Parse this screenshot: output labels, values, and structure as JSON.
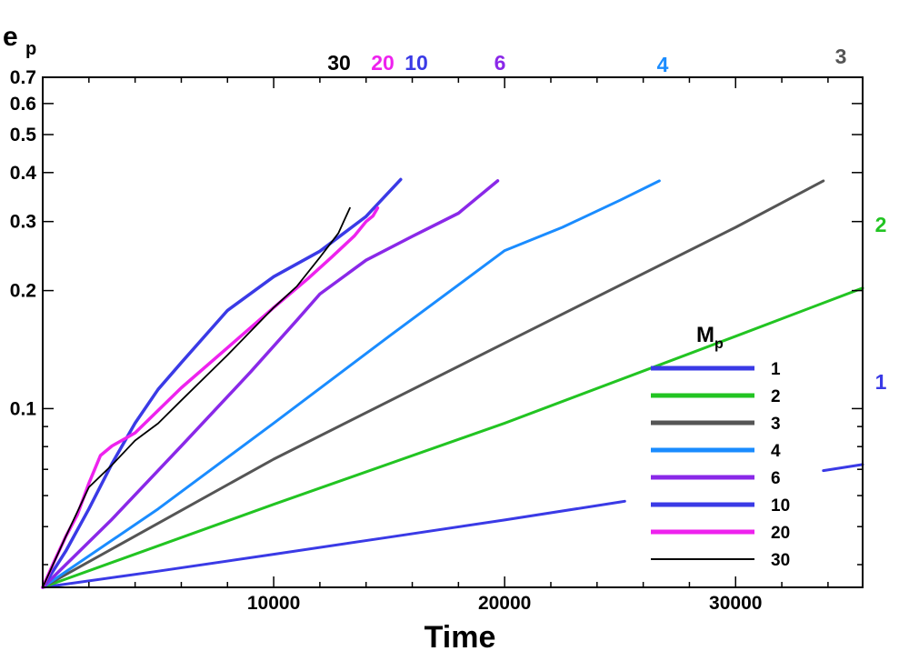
{
  "chart_data": {
    "type": "line",
    "title": "",
    "xlabel": "Time",
    "ylabel": "e",
    "ylabel_subscript": "p",
    "xlim": [
      0,
      35500
    ],
    "ylim": [
      0.035,
      0.7
    ],
    "yscale": "log",
    "x_ticks": [
      10000,
      20000,
      30000
    ],
    "x_tick_labels": [
      "10000",
      "20000",
      "30000"
    ],
    "y_ticks": [
      0.1,
      0.2,
      0.3,
      0.4,
      0.5,
      0.6,
      0.7
    ],
    "y_tick_labels": [
      "0.1",
      "0.2",
      "0.3",
      "0.4",
      "0.5",
      "0.6",
      "0.7"
    ],
    "legend": {
      "title": "M",
      "title_subscript": "p",
      "position": "bottom-right"
    },
    "series": [
      {
        "name": "1",
        "color": "#3a3ae6",
        "end_label": "1",
        "label_color": "#3a3ae6",
        "x": [
          0,
          5000,
          10000,
          15000,
          20000,
          25000,
          30000,
          35500
        ],
        "y": [
          0.035,
          0.0385,
          0.0425,
          0.047,
          0.052,
          0.0578,
          0.0642,
          0.072
        ],
        "gaps": [
          [
            25200,
            33800
          ]
        ]
      },
      {
        "name": "2",
        "color": "#22c422",
        "end_label": "2",
        "label_color": "#22c422",
        "x": [
          0,
          10000,
          20000,
          30000,
          35500
        ],
        "y": [
          0.035,
          0.057,
          0.0918,
          0.153,
          0.203
        ]
      },
      {
        "name": "3",
        "color": "#555555",
        "end_label": "3",
        "label_color": "#555555",
        "x": [
          0,
          10000,
          20000,
          30000,
          33800
        ],
        "y": [
          0.035,
          0.0743,
          0.147,
          0.29,
          0.381
        ]
      },
      {
        "name": "4",
        "color": "#1a8cff",
        "end_label": "4",
        "label_color": "#1a8cff",
        "x": [
          0,
          5000,
          10000,
          15000,
          20000,
          22500,
          25000,
          26700
        ],
        "y": [
          0.035,
          0.0555,
          0.0918,
          0.153,
          0.253,
          0.29,
          0.34,
          0.381
        ]
      },
      {
        "name": "6",
        "color": "#8a28e8",
        "end_label": "6",
        "label_color": "#8a28e8",
        "x": [
          0,
          3000,
          6000,
          9000,
          11000,
          12000,
          14000,
          16000,
          18000,
          19700
        ],
        "y": [
          0.035,
          0.0522,
          0.0803,
          0.124,
          0.168,
          0.196,
          0.239,
          0.275,
          0.315,
          0.381
        ]
      },
      {
        "name": "10",
        "color": "#3a3ae6",
        "end_label": "10",
        "label_color": "#3a3ae6",
        "x": [
          0,
          1000,
          2000,
          3000,
          4000,
          5000,
          6000,
          8000,
          10000,
          12000,
          14000,
          15500
        ],
        "y": [
          0.035,
          0.0433,
          0.0555,
          0.0724,
          0.0918,
          0.112,
          0.131,
          0.178,
          0.217,
          0.252,
          0.309,
          0.384
        ]
      },
      {
        "name": "20",
        "color": "#ee22ee",
        "end_label": "20",
        "label_color": "#ee22ee",
        "x": [
          0,
          500,
          1000,
          1500,
          2000,
          2500,
          3000,
          4000,
          6000,
          8000,
          10000,
          11500,
          12500,
          13500,
          14000,
          14300,
          14500
        ],
        "y": [
          0.035,
          0.0408,
          0.0472,
          0.0536,
          0.0645,
          0.0759,
          0.0803,
          0.0867,
          0.113,
          0.143,
          0.181,
          0.215,
          0.243,
          0.276,
          0.3,
          0.31,
          0.325
        ]
      },
      {
        "name": "30",
        "color": "#000000",
        "end_label": "30",
        "label_color": "#000000",
        "x": [
          0,
          1000,
          2000,
          3000,
          4000,
          5000,
          6000,
          8000,
          10000,
          11000,
          12000,
          12800,
          13300
        ],
        "y": [
          0.035,
          0.0472,
          0.063,
          0.0718,
          0.0829,
          0.0917,
          0.105,
          0.137,
          0.181,
          0.205,
          0.243,
          0.28,
          0.325
        ]
      }
    ]
  }
}
